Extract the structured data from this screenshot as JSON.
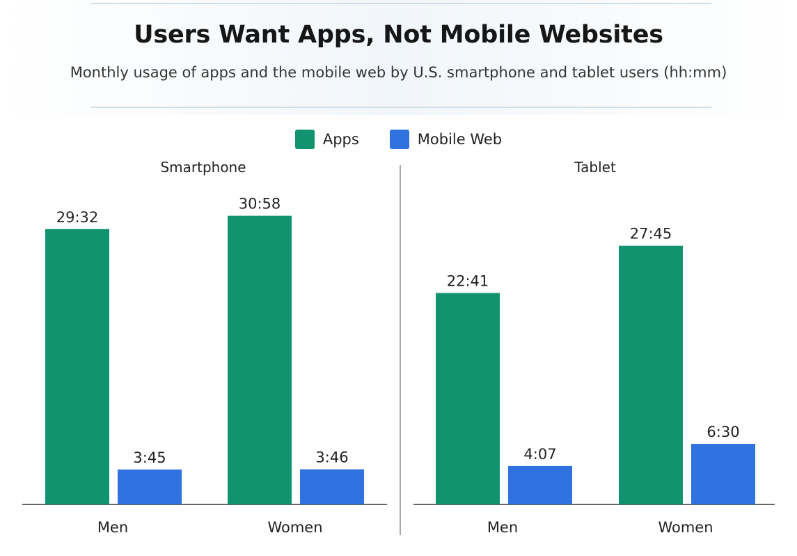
{
  "title": "Users Want Apps, Not Mobile Websites",
  "subtitle": "Monthly usage of apps and the mobile web by U.S. smartphone and tablet users (hh:mm)",
  "legend": {
    "apps": "Apps",
    "web": "Mobile Web",
    "apps_color": "#12936f",
    "web_color": "#2f72e0"
  },
  "chart_data": [
    {
      "type": "bar",
      "title": "Smartphone",
      "categories": [
        "Men",
        "Women"
      ],
      "series": [
        {
          "name": "Apps",
          "values": [
            29.533,
            30.967
          ],
          "labels": [
            "29:32",
            "30:58"
          ],
          "color": "#12936f"
        },
        {
          "name": "Mobile Web",
          "values": [
            3.75,
            3.767
          ],
          "labels": [
            "3:45",
            "3:46"
          ],
          "color": "#2f72e0"
        }
      ],
      "ylim": [
        0,
        35
      ],
      "grid": false
    },
    {
      "type": "bar",
      "title": "Tablet",
      "categories": [
        "Men",
        "Women"
      ],
      "series": [
        {
          "name": "Apps",
          "values": [
            22.683,
            27.75
          ],
          "labels": [
            "22:41",
            "27:45"
          ],
          "color": "#12936f"
        },
        {
          "name": "Mobile Web",
          "values": [
            4.117,
            6.5
          ],
          "labels": [
            "4:07",
            "6:30"
          ],
          "color": "#2f72e0"
        }
      ],
      "ylim": [
        0,
        35
      ],
      "grid": false
    }
  ]
}
